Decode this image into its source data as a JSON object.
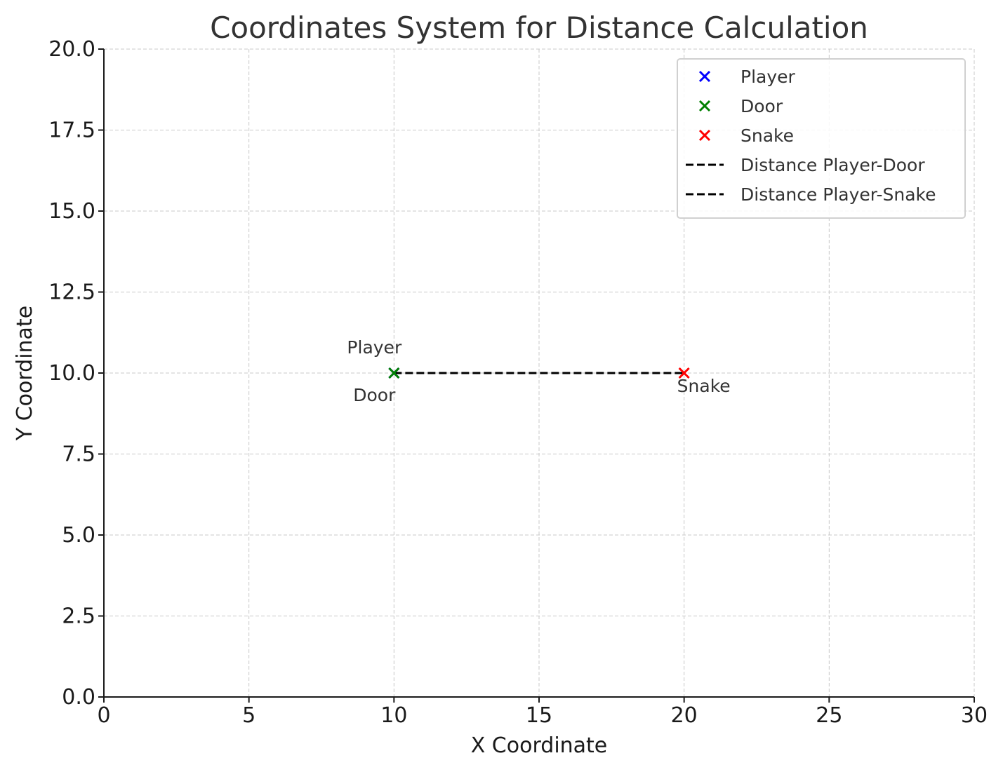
{
  "chart_data": {
    "type": "scatter",
    "title": "Coordinates System for Distance Calculation",
    "xlabel": "X Coordinate",
    "ylabel": "Y Coordinate",
    "xlim": [
      0,
      30
    ],
    "ylim": [
      0,
      20
    ],
    "xticks": [
      0,
      5,
      10,
      15,
      20,
      25,
      30
    ],
    "yticks": [
      0,
      2.5,
      5,
      7.5,
      10,
      12.5,
      15,
      17.5,
      20
    ],
    "xtick_labels": [
      "0",
      "5",
      "10",
      "15",
      "20",
      "25",
      "30"
    ],
    "ytick_labels": [
      "0.0",
      "2.5",
      "5.0",
      "7.5",
      "10.0",
      "12.5",
      "15.0",
      "17.5",
      "20.0"
    ],
    "grid": true,
    "legend_position": "top-right",
    "points": [
      {
        "name": "Player",
        "x": 10,
        "y": 10,
        "color": "#0000ff",
        "marker": "x",
        "label": "Player",
        "label_position": "above"
      },
      {
        "name": "Door",
        "x": 10,
        "y": 10,
        "color": "#008000",
        "marker": "x",
        "label": "Door",
        "label_position": "below"
      },
      {
        "name": "Snake",
        "x": 20,
        "y": 10,
        "color": "#ff0000",
        "marker": "x",
        "label": "Snake",
        "label_position": "below-right"
      }
    ],
    "lines": [
      {
        "name": "Distance Player-Door",
        "from": [
          10,
          10
        ],
        "to": [
          10,
          10
        ],
        "color": "#000000",
        "style": "dashed"
      },
      {
        "name": "Distance Player-Snake",
        "from": [
          10,
          10
        ],
        "to": [
          20,
          10
        ],
        "color": "#000000",
        "style": "dashed"
      }
    ],
    "legend": [
      {
        "label": "Player",
        "kind": "marker",
        "color": "#0000ff"
      },
      {
        "label": "Door",
        "kind": "marker",
        "color": "#008000"
      },
      {
        "label": "Snake",
        "kind": "marker",
        "color": "#ff0000"
      },
      {
        "label": "Distance Player-Door",
        "kind": "line",
        "color": "#000000"
      },
      {
        "label": "Distance Player-Snake",
        "kind": "line",
        "color": "#000000"
      }
    ]
  }
}
